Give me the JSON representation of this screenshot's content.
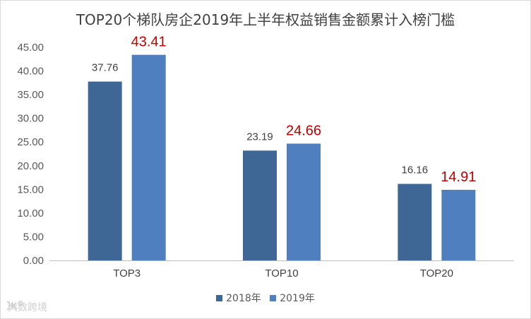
{
  "chart_data": {
    "type": "bar",
    "title": "TOP20个梯队房企2019年上半年权益销售金额累计入榜门槛",
    "categories": [
      "TOP3",
      "TOP10",
      "TOP20"
    ],
    "series": [
      {
        "name": "2018年",
        "values": [
          37.76,
          23.19,
          16.16
        ],
        "labels": [
          "37.76",
          "23.19",
          "16.16"
        ],
        "color": "#3e6796"
      },
      {
        "name": "2019年",
        "values": [
          43.41,
          24.66,
          14.91
        ],
        "labels": [
          "43.41",
          "24.66",
          "14.91"
        ],
        "color": "#4f7fbe"
      }
    ],
    "ylim": [
      0,
      45
    ],
    "yticks": [
      "0.00",
      "5.00",
      "10.00",
      "15.00",
      "20.00",
      "25.00",
      "30.00",
      "35.00",
      "40.00",
      "45.00"
    ],
    "grid": false,
    "legend_position": "bottom",
    "label_colors": {
      "2018年": "#404040",
      "2019年": "#c00000"
    }
  },
  "watermark": {
    "text": "大数跨境",
    "icon": "kr-logo-icon"
  }
}
